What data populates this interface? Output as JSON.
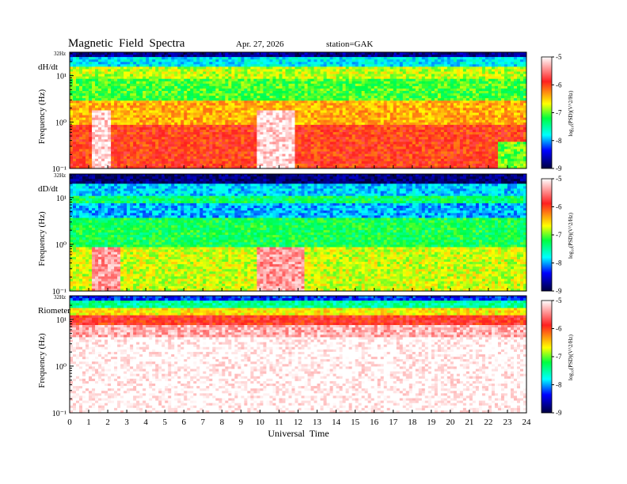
{
  "header": {
    "title": "Magnetic  Field  Spectra",
    "date": "Apr. 27, 2026",
    "station": "station=GAK"
  },
  "chart_data": [
    {
      "type": "heatmap",
      "panel_label": "dH/dt",
      "top_label": "32Hz",
      "ylabel": "Frequency  (Hz)",
      "ytick_labels": [
        "10¹",
        "10⁰",
        "10⁻¹"
      ],
      "ytick_values": [
        10,
        1,
        0.1
      ],
      "colorbar_label": "log₁₀(PSD)(V^2/Hz)",
      "colorbar_ticks": [
        -5,
        -6,
        -7,
        -8,
        -9
      ]
    },
    {
      "type": "heatmap",
      "panel_label": "dD/dt",
      "top_label": "32Hz",
      "ylabel": "Frequency  (Hz)",
      "ytick_labels": [
        "10¹",
        "10⁰",
        "10⁻¹"
      ],
      "ytick_values": [
        10,
        1,
        0.1
      ],
      "colorbar_label": "log₁₀(PSD)(V^2/Hz)",
      "colorbar_ticks": [
        -5,
        -6,
        -7,
        -8,
        -9
      ]
    },
    {
      "type": "heatmap",
      "panel_label": "Riometer",
      "top_label": "32Hz",
      "ylabel": "Frequency  (Hz)",
      "ytick_labels": [
        "10¹",
        "10⁰",
        "10⁻¹"
      ],
      "ytick_values": [
        10,
        1,
        0.1
      ],
      "colorbar_label": "log₁₀(PSD)(V^2/Hz)",
      "colorbar_ticks": [
        -5,
        -6,
        -7,
        -8,
        -9
      ]
    }
  ],
  "x_axis": {
    "label": "Universal  Time",
    "range": [
      0,
      24
    ],
    "ticks": [
      "0",
      "1",
      "2",
      "3",
      "4",
      "5",
      "6",
      "7",
      "8",
      "9",
      "10",
      "11",
      "12",
      "13",
      "14",
      "15",
      "16",
      "17",
      "18",
      "19",
      "20",
      "21",
      "22",
      "23",
      "24"
    ]
  },
  "colors": {
    "colormap": [
      "#ffffff",
      "#ff2020",
      "#ffff00",
      "#00ff40",
      "#00ffff",
      "#0000ff",
      "#000040"
    ]
  }
}
